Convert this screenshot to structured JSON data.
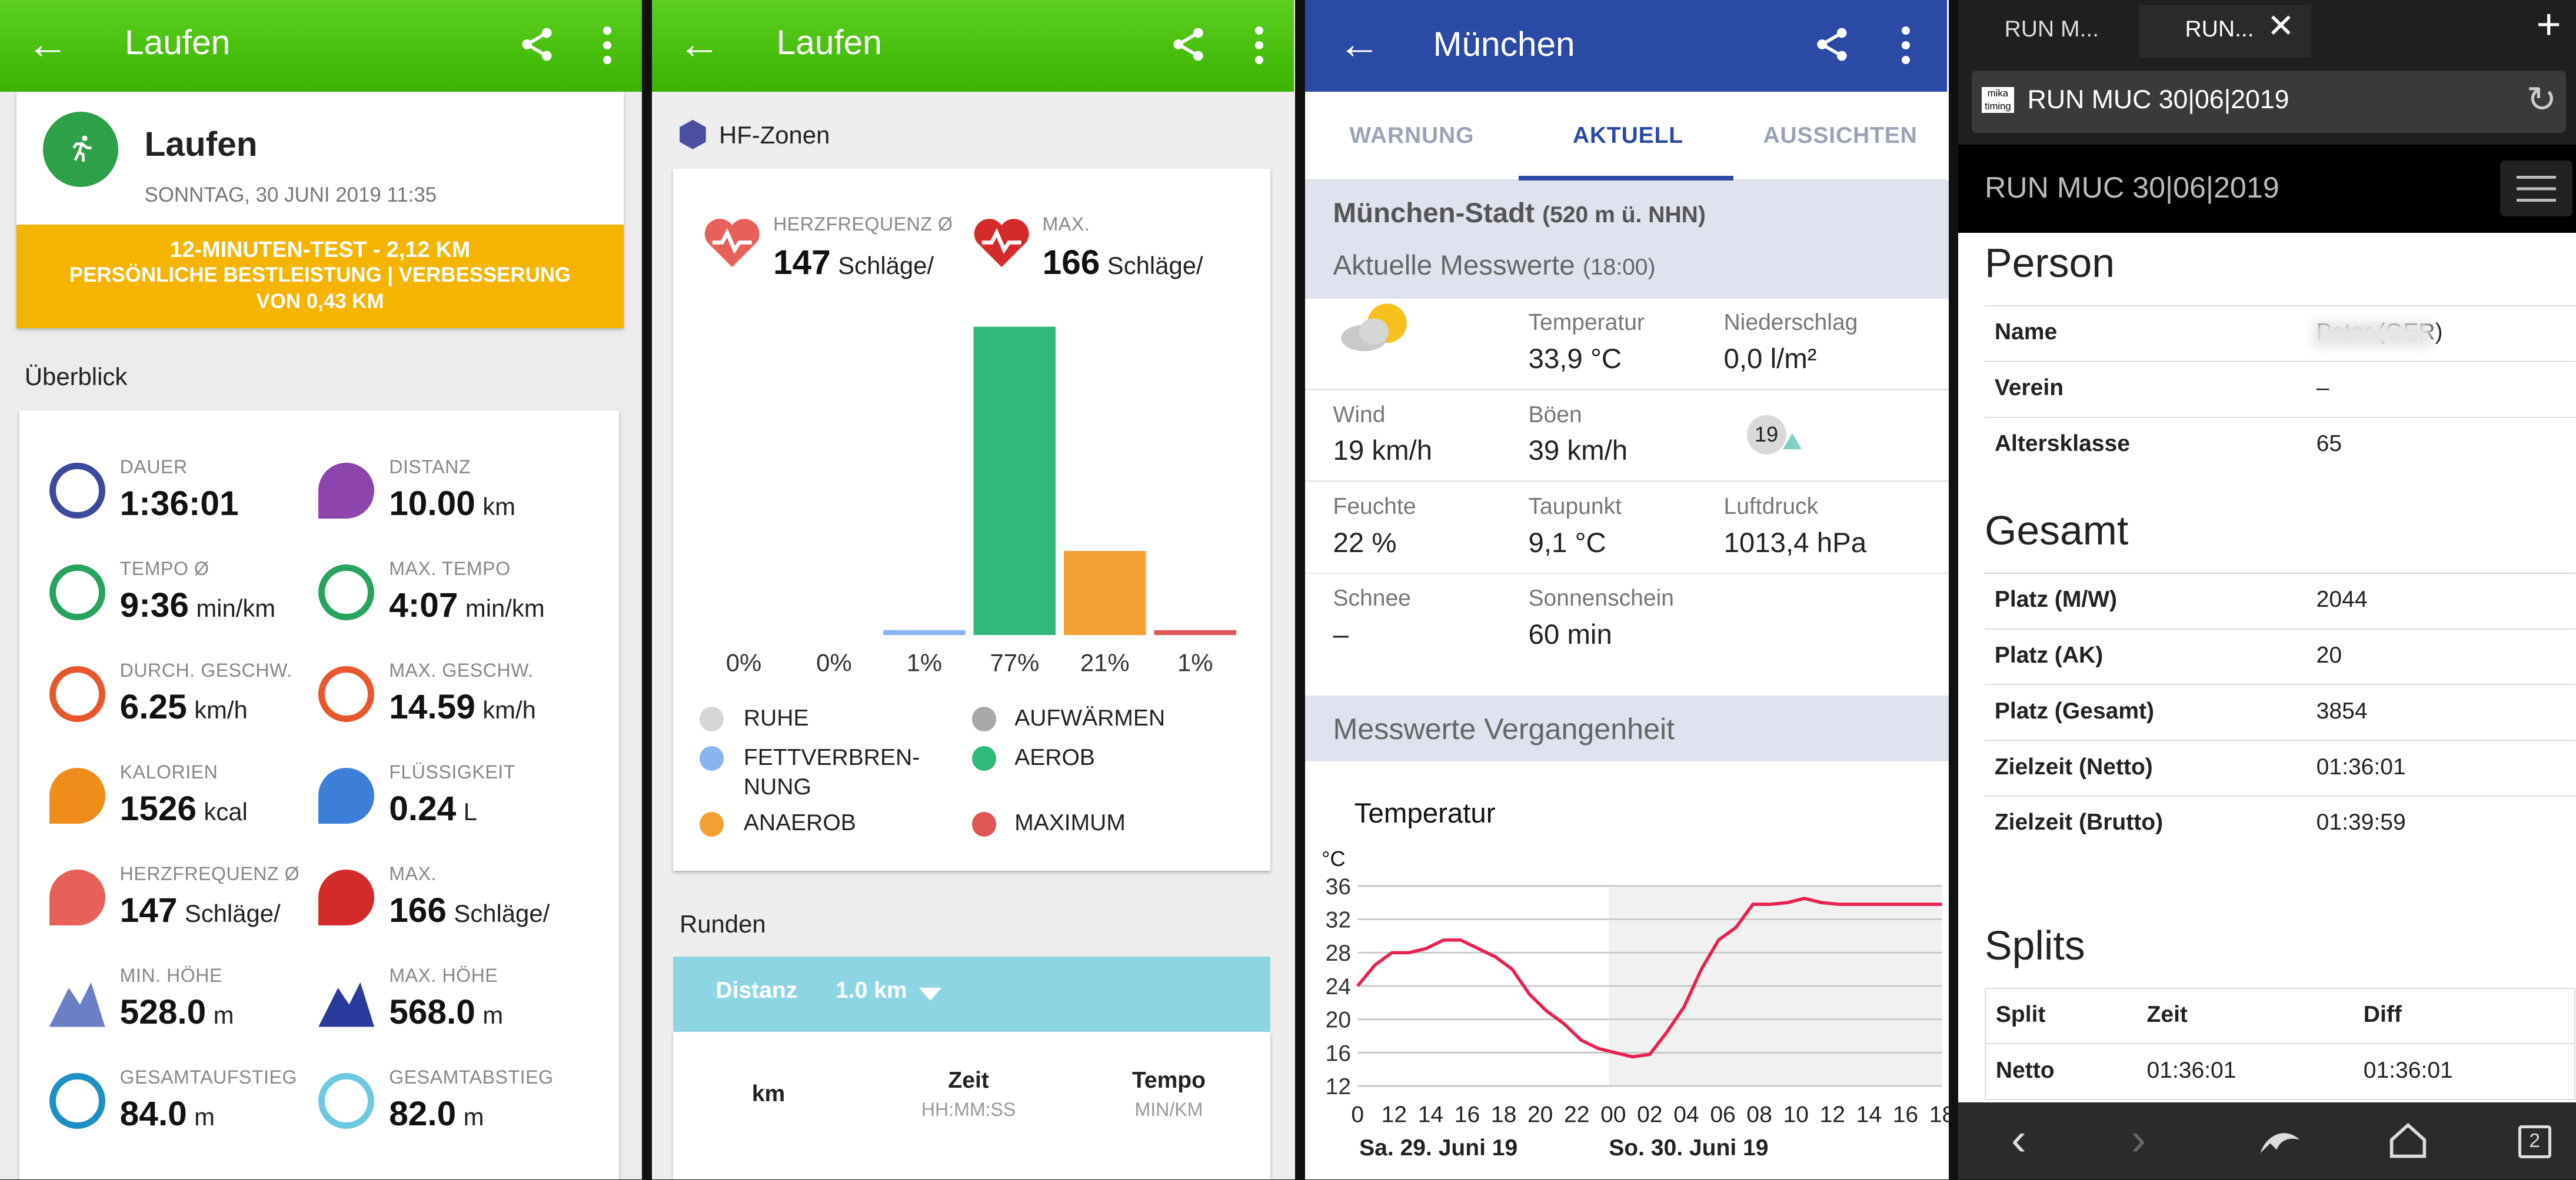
{
  "panel1": {
    "title": "Laufen",
    "activity": "Laufen",
    "date": "SONNTAG, 30 JUNI 2019 11:35",
    "banner": {
      "line1": "12-MINUTEN-TEST  -  2,12 KM",
      "line2": "PERSÖNLICHE BESTLEISTUNG  |  VERBESSERUNG",
      "line3": "VON 0,43 KM",
      "color": "#f4b400"
    },
    "overview_label": "Überblick",
    "stats": [
      {
        "label": "DAUER",
        "value": "1:36:01",
        "unit": "",
        "icon": "stopwatch-icon",
        "color": "#3b4a9c"
      },
      {
        "label": "DISTANZ",
        "value": "10.00",
        "unit": "km",
        "icon": "location-pins-icon",
        "color": "#8e44ad"
      },
      {
        "label": "TEMPO Ø",
        "value": "9:36",
        "unit": "min/km",
        "icon": "speedometer-icon",
        "color": "#27a35f"
      },
      {
        "label": "MAX. TEMPO",
        "value": "4:07",
        "unit": "min/km",
        "icon": "speedometer-icon",
        "color": "#27a35f"
      },
      {
        "label": "DURCH. GESCHW.",
        "value": "6.25",
        "unit": "km/h",
        "icon": "speedometer-icon",
        "color": "#e8572b"
      },
      {
        "label": "MAX. GESCHW.",
        "value": "14.59",
        "unit": "km/h",
        "icon": "speedometer-icon",
        "color": "#e8572b"
      },
      {
        "label": "KALORIEN",
        "value": "1526",
        "unit": "kcal",
        "icon": "flame-icon",
        "color": "#f08c1a"
      },
      {
        "label": "FLÜSSIGKEIT",
        "value": "0.24",
        "unit": "L",
        "icon": "drops-icon",
        "color": "#3d7fd8"
      },
      {
        "label": "HERZFREQUENZ Ø",
        "value": "147",
        "unit": "Schläge/",
        "icon": "heart-rate-icon",
        "color": "#e8605a"
      },
      {
        "label": "MAX.",
        "value": "166",
        "unit": "Schläge/",
        "icon": "heart-rate-icon",
        "color": "#d42a2a"
      },
      {
        "label": "MIN. HÖHE",
        "value": "528.0",
        "unit": "m",
        "icon": "mountain-icon",
        "color": "#6b7fc7"
      },
      {
        "label": "MAX. HÖHE",
        "value": "568.0",
        "unit": "m",
        "icon": "mountain-icon",
        "color": "#2a3a9c"
      },
      {
        "label": "GESAMTAUFSTIEG",
        "value": "84.0",
        "unit": "m",
        "icon": "ascent-icon",
        "color": "#1e8fc4"
      },
      {
        "label": "GESAMTABSTIEG",
        "value": "82.0",
        "unit": "m",
        "icon": "descent-icon",
        "color": "#6ec9e0"
      }
    ]
  },
  "panel2": {
    "title": "Laufen",
    "section": "HF-Zonen",
    "hr_avg_label": "HERZFREQUENZ Ø",
    "hr_avg_value": "147",
    "hr_unit": "Schläge/",
    "hr_max_label": "MAX.",
    "hr_max_value": "166",
    "legend": [
      {
        "name": "RUHE",
        "color": "#d6d6d6"
      },
      {
        "name": "AUFWÄRMEN",
        "color": "#a8a8a8"
      },
      {
        "name": "FETTVERBREN-\nNUNG",
        "color": "#8ab4f0"
      },
      {
        "name": "AEROB",
        "color": "#2fba7a"
      },
      {
        "name": "ANAEROB",
        "color": "#f5a033"
      },
      {
        "name": "MAXIMUM",
        "color": "#e05555"
      }
    ],
    "runden_label": "Runden",
    "distanz_label": "Distanz",
    "distanz_value": "1.0 km",
    "col_km": "km",
    "col_zeit": "Zeit",
    "col_zeit_sub": "HH:MM:SS",
    "col_tempo": "Tempo",
    "col_tempo_sub": "MIN/KM"
  },
  "chart_data": [
    {
      "type": "bar",
      "categories": [
        "RUHE",
        "AUFWÄRMEN",
        "FETTVERBREN-NUNG",
        "AEROB",
        "ANAEROB",
        "MAXIMUM"
      ],
      "values": [
        0,
        0,
        1,
        77,
        21,
        1
      ],
      "labels": [
        "0%",
        "0%",
        "1%",
        "77%",
        "21%",
        "1%"
      ],
      "colors": [
        "#d6d6d6",
        "#a8a8a8",
        "#8ab4f0",
        "#2fba7a",
        "#f5a033",
        "#e05555"
      ],
      "legend": "bottom"
    },
    {
      "type": "line",
      "title": "Temperatur",
      "ylabel": "°C",
      "ylim": [
        12,
        36
      ],
      "yticks": [
        12,
        16,
        20,
        24,
        28,
        32,
        36
      ],
      "xticks": [
        "0",
        "12",
        "14",
        "16",
        "18",
        "20",
        "22",
        "00",
        "02",
        "04",
        "06",
        "08",
        "10",
        "12",
        "14",
        "16",
        "18"
      ],
      "x_groups": [
        "Sa. 29. Juni 19",
        "So. 30. Juni 19"
      ],
      "x": [
        0,
        1,
        2,
        3,
        4,
        5,
        6,
        7,
        8,
        9,
        10,
        11,
        12,
        13,
        14,
        15,
        16,
        17,
        18,
        19,
        20,
        21,
        22,
        23,
        24,
        25,
        26,
        27,
        28,
        29,
        30,
        31,
        32,
        33,
        34
      ],
      "values": [
        24,
        26.5,
        28,
        28,
        28.5,
        29.5,
        29.5,
        28.5,
        27.5,
        26,
        23,
        21,
        19.5,
        17.5,
        16.5,
        16,
        15.5,
        15.8,
        18.5,
        21.5,
        26,
        29.5,
        31,
        33.8,
        33.8,
        34,
        34.5,
        34,
        33.8,
        33.8,
        33.8,
        33.8,
        33.8,
        33.8,
        33.8
      ],
      "color": "#e8224f",
      "grid": true
    }
  ],
  "panel3": {
    "title": "München",
    "tabs": [
      "WARNUNG",
      "AKTUELL",
      "AUSSICHTEN"
    ],
    "station": "München-Stadt",
    "station_height": "(520 m ü. NHN)",
    "current_label": "Aktuelle Messwerte",
    "current_time": "(18:00)",
    "rows": [
      [
        {
          "l": "",
          "v": ""
        },
        {
          "l": "Temperatur",
          "v": "33,9 °C"
        },
        {
          "l": "Niederschlag",
          "v": "0,0 l/m²"
        }
      ],
      [
        {
          "l": "Wind",
          "v": "19 km/h"
        },
        {
          "l": "Böen",
          "v": "39 km/h"
        },
        {
          "l": "",
          "v": ""
        }
      ],
      [
        {
          "l": "Feuchte",
          "v": "22 %"
        },
        {
          "l": "Taupunkt",
          "v": "9,1 °C"
        },
        {
          "l": "Luftdruck",
          "v": "1013,4 hPa"
        }
      ],
      [
        {
          "l": "Schnee",
          "v": "–"
        },
        {
          "l": "Sonnenschein",
          "v": "60 min"
        },
        {
          "l": "",
          "v": ""
        }
      ]
    ],
    "wind_badge": "19",
    "past_label": "Messwerte Vergangenheit",
    "chart_title": "Temperatur",
    "chart_unit": "°C",
    "day1": "Sa. 29. Juni 19",
    "day2": "So. 30. Juni 19"
  },
  "panel4": {
    "tab1": "RUN M...",
    "tab2": "RUN...",
    "url": "RUN MUC 30|06|2019",
    "page_title": "RUN MUC 30|06|2019",
    "person_label": "Person",
    "person": [
      {
        "k": "Name",
        "v": "Peter (GER)"
      },
      {
        "k": "Verein",
        "v": "–"
      },
      {
        "k": "Altersklasse",
        "v": "65"
      }
    ],
    "gesamt_label": "Gesamt",
    "gesamt": [
      {
        "k": "Platz (M/W)",
        "v": "2044"
      },
      {
        "k": "Platz (AK)",
        "v": "20"
      },
      {
        "k": "Platz (Gesamt)",
        "v": "3854"
      },
      {
        "k": "Zielzeit (Netto)",
        "v": "01:36:01"
      },
      {
        "k": "Zielzeit (Brutto)",
        "v": "01:39:59"
      }
    ],
    "splits_label": "Splits",
    "splits_head": [
      "Split",
      "Zeit",
      "Diff"
    ],
    "splits_rows": [
      [
        "Netto",
        "01:36:01",
        "01:36:01"
      ]
    ],
    "tab_count": "2"
  }
}
